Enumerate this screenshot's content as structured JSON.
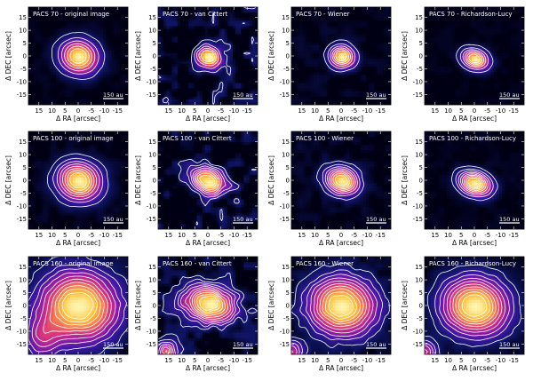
{
  "figure": {
    "rows": [
      {
        "band": "PACS 70",
        "panels": [
          {
            "title": "PACS 70 - original image",
            "method": "original",
            "peak": [
              0,
              0
            ],
            "spread": [
              4.5,
              4.0
            ],
            "angle": -20,
            "noise": 0.06,
            "levels": 6
          },
          {
            "title": "PACS 70 - van Cittert",
            "method": "van-cittert",
            "peak": [
              0,
              0
            ],
            "spread": [
              3.0,
              2.5
            ],
            "angle": -20,
            "noise": 0.45,
            "levels": 5
          },
          {
            "title": "PACS 70 - Wiener",
            "method": "wiener",
            "peak": [
              0,
              0
            ],
            "spread": [
              3.0,
              2.7
            ],
            "angle": -20,
            "noise": 0.12,
            "levels": 6
          },
          {
            "title": "PACS 70 - Richardson-Lucy",
            "method": "richardson-lucy",
            "peak": [
              0,
              -1
            ],
            "spread": [
              3.2,
              2.3
            ],
            "angle": -20,
            "noise": 0.05,
            "levels": 6
          }
        ]
      },
      {
        "band": "PACS 100",
        "panels": [
          {
            "title": "PACS 100 - original image",
            "method": "original",
            "peak": [
              0,
              0
            ],
            "spread": [
              5.2,
              4.6
            ],
            "angle": -20,
            "noise": 0.08,
            "levels": 8
          },
          {
            "title": "PACS 100 - van Cittert",
            "method": "van-cittert",
            "peak": [
              0,
              0
            ],
            "spread": [
              4.5,
              3.0
            ],
            "angle": -25,
            "noise": 0.45,
            "levels": 8
          },
          {
            "title": "PACS 100 - Wiener",
            "method": "wiener",
            "peak": [
              0,
              0
            ],
            "spread": [
              4.0,
              3.2
            ],
            "angle": -20,
            "noise": 0.14,
            "levels": 8
          },
          {
            "title": "PACS 100 - Richardson-Lucy",
            "method": "richardson-lucy",
            "peak": [
              0,
              -1
            ],
            "spread": [
              4.0,
              2.8
            ],
            "angle": -20,
            "noise": 0.06,
            "levels": 8
          }
        ]
      },
      {
        "band": "PACS 160",
        "panels": [
          {
            "title": "PACS 160 - original image",
            "method": "original",
            "peak": [
              0,
              0
            ],
            "spread": [
              9.5,
              8.5
            ],
            "angle": -10,
            "noise": 0.1,
            "levels": 10
          },
          {
            "title": "PACS 160 - van Cittert",
            "method": "van-cittert",
            "peak": [
              0,
              1
            ],
            "spread": [
              6.5,
              4.5
            ],
            "angle": -10,
            "noise": 0.35,
            "levels": 10
          },
          {
            "title": "PACS 160 - Wiener",
            "method": "wiener",
            "peak": [
              0,
              0
            ],
            "spread": [
              8.0,
              7.0
            ],
            "angle": -10,
            "noise": 0.14,
            "levels": 10
          },
          {
            "title": "PACS 160 - Richardson-Lucy",
            "method": "richardson-lucy",
            "peak": [
              0,
              0
            ],
            "spread": [
              8.0,
              7.0
            ],
            "angle": -10,
            "noise": 0.08,
            "levels": 10
          }
        ]
      }
    ],
    "scale_bar_label": "150 au",
    "x_axis_label": "Δ RA [arcsec]",
    "y_axis_label": "Δ DEC [arcsec]",
    "axis_range": [
      -19,
      19
    ],
    "x_ticks": [
      15,
      10,
      5,
      0,
      -5,
      -10,
      -15
    ],
    "y_ticks": [
      15,
      10,
      5,
      0,
      -5,
      -10,
      -15
    ],
    "colormap": [
      "#000014",
      "#101565",
      "#3d17a8",
      "#8d1ca6",
      "#d8327e",
      "#f77a50",
      "#fbc33d",
      "#fef6b3"
    ],
    "contour_color": "#ffffff"
  }
}
